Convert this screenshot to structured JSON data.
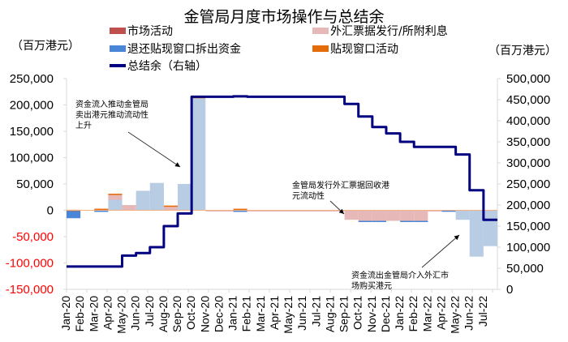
{
  "chart_data": {
    "type": "bar",
    "title": "金管局月度市场操作与总结余",
    "ylabel_left": "（百万港元）",
    "ylabel_right": "（百万港元）",
    "categories": [
      "Jan-20",
      "Feb-20",
      "Mar-20",
      "Apr-20",
      "May-20",
      "Jun-20",
      "Jul-20",
      "Aug-20",
      "Sep-20",
      "Oct-20",
      "Nov-20",
      "Dec-20",
      "Jan-21",
      "Feb-21",
      "Mar-21",
      "Apr-21",
      "May-21",
      "Jun-21",
      "Jul-21",
      "Aug-21",
      "Sep-21",
      "Oct-21",
      "Nov-21",
      "Dec-21",
      "Jan-22",
      "Feb-22",
      "Mar-22",
      "Apr-22",
      "May-22",
      "Jun-22",
      "Jul-22"
    ],
    "ylim_left": [
      -150000,
      250000
    ],
    "yticks_left": [
      "250,000",
      "200,000",
      "150,000",
      "100,000",
      "50,000",
      "0",
      "-50,000",
      "-100,000",
      "-150,000"
    ],
    "ylim_right": [
      0,
      500000
    ],
    "yticks_right": [
      "500,000",
      "450,000",
      "400,000",
      "350,000",
      "300,000",
      "250,000",
      "200,000",
      "150,000",
      "100,000",
      "50,000",
      "0"
    ],
    "series": [
      {
        "name": "市场活动",
        "color": "#b8cce4",
        "axis": "left",
        "values": [
          0,
          0,
          0,
          20000,
          0,
          37000,
          52000,
          0,
          50000,
          214000,
          0,
          0,
          0,
          0,
          0,
          0,
          0,
          0,
          0,
          0,
          0,
          0,
          0,
          0,
          0,
          0,
          0,
          0,
          -18000,
          -88000,
          -68000
        ]
      },
      {
        "name": "外汇票据发行/所附利息",
        "color": "#e6b9b8",
        "axis": "left",
        "values": [
          0,
          0,
          0,
          10000,
          10000,
          0,
          0,
          8000,
          0,
          0,
          -1000,
          -1000,
          0,
          -1000,
          -500,
          -500,
          -500,
          -500,
          -500,
          -1000,
          -18000,
          -20000,
          -20000,
          -20000,
          -20000,
          -20000,
          -500,
          -500,
          0,
          0,
          0
        ]
      },
      {
        "name": "退还贴现窗口拆出资金",
        "color": "#4a86d8",
        "axis": "left",
        "values": [
          -15000,
          0,
          -3000,
          0,
          0,
          0,
          0,
          0,
          0,
          0,
          0,
          0,
          -3000,
          0,
          0,
          0,
          0,
          0,
          0,
          0,
          0,
          -500,
          -500,
          0,
          -500,
          -1500,
          0,
          -1000,
          0,
          0,
          0
        ]
      },
      {
        "name": "贴现窗口活动",
        "color": "#e46c0a",
        "axis": "left",
        "values": [
          1000,
          0,
          3000,
          1500,
          0,
          0,
          0,
          1000,
          0,
          1000,
          0,
          0,
          3000,
          0,
          0,
          0,
          0,
          0,
          0,
          0,
          0,
          0,
          0,
          0,
          0,
          0,
          0,
          0,
          0,
          0,
          0
        ]
      },
      {
        "name": "总结余（右轴）",
        "color": "#000080",
        "axis": "right",
        "type": "line",
        "values": [
          54000,
          54000,
          54000,
          54000,
          80000,
          86000,
          100000,
          150000,
          180000,
          457000,
          457000,
          457000,
          458000,
          457000,
          457000,
          457000,
          457000,
          457000,
          457000,
          457000,
          440000,
          410000,
          385000,
          370000,
          350000,
          338000,
          338000,
          338000,
          320000,
          235000,
          165000
        ]
      }
    ],
    "legend": [
      "市场活动",
      "外汇票据发行/所附利息",
      "退还贴现窗口拆出资金",
      "贴现窗口活动",
      "总结余（右轴）"
    ],
    "annotations": [
      "资金流入推动金管局卖出港元推动流动性上升",
      "金管局发行外汇票据回收港元流动性",
      "资金流出金管局介入外汇市场购买港元"
    ],
    "grid": false,
    "legend_position": "top"
  },
  "header": {
    "title": "金管局月度市场操作与总结余",
    "unit_left": "（百万港元）",
    "unit_right": "（百万港元）"
  },
  "legend": {
    "market": "市场活动",
    "fx_bills": "外汇票据发行/所附利息",
    "discount_repay": "退还贴现窗口拆出资金",
    "discount_window": "贴现窗口活动",
    "balance": "总结余（右轴）"
  },
  "annotations": {
    "a1_line1": "资金流入推动金管局",
    "a1_line2": "卖出港元推动流动性",
    "a1_line3": "上升",
    "a2_line1": "金管局发行外汇票据回收港",
    "a2_line2": "元流动性",
    "a3_line1": "资金流出金管局介入外汇市",
    "a3_line2": "场购买港元"
  },
  "colors": {
    "market": "#b8cce4",
    "fx_bills": "#e6b9b8",
    "discount_repay": "#4a86d8",
    "discount_window": "#e46c0a",
    "market_legend": "#c0504d",
    "balance": "#000080",
    "negative_tick": "#ff0000"
  }
}
